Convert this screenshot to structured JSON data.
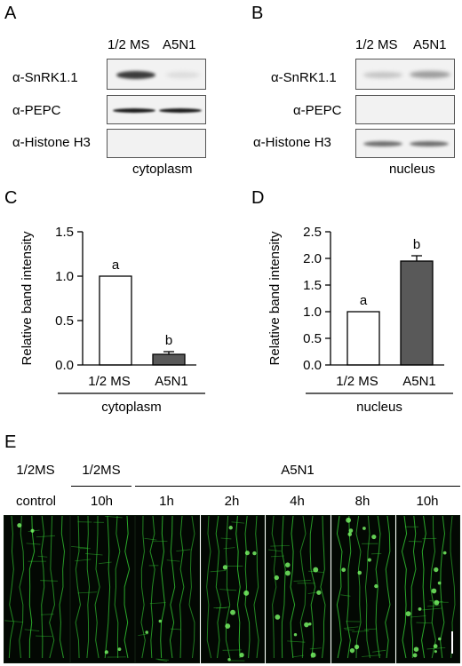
{
  "panels": {
    "A": "A",
    "B": "B",
    "C": "C",
    "D": "D",
    "E": "E"
  },
  "blot_A": {
    "lanes": [
      "1/2 MS",
      "A5N1"
    ],
    "rows": [
      "α-SnRK1.1",
      "α-PEPC",
      "α-Histone H3"
    ],
    "caption": "cytoplasm"
  },
  "blot_B": {
    "lanes": [
      "1/2 MS",
      "A5N1"
    ],
    "rows": [
      "α-SnRK1.1",
      "α-PEPC",
      "α-Histone H3"
    ],
    "caption": "nucleus"
  },
  "chart_data": [
    {
      "type": "bar",
      "panel": "C",
      "categories": [
        "1/2 MS",
        "A5N1"
      ],
      "values": [
        1.0,
        0.12
      ],
      "errors": [
        0,
        0.03
      ],
      "significance": [
        "a",
        "b"
      ],
      "bar_colors": [
        "#ffffff",
        "#595959"
      ],
      "ylabel": "Relative band intensity",
      "ylim": [
        0,
        1.5
      ],
      "yticks": [
        "0.0",
        "0.5",
        "1.0",
        "1.5"
      ],
      "group_label": "cytoplasm",
      "grid": false
    },
    {
      "type": "bar",
      "panel": "D",
      "categories": [
        "1/2 MS",
        "A5N1"
      ],
      "values": [
        1.0,
        1.95
      ],
      "errors": [
        0,
        0.1
      ],
      "significance": [
        "a",
        "b"
      ],
      "bar_colors": [
        "#ffffff",
        "#595959"
      ],
      "ylabel": "Relative band intensity",
      "ylim": [
        0,
        2.5
      ],
      "yticks": [
        "0.0",
        "0.5",
        "1.0",
        "1.5",
        "2.0",
        "2.5"
      ],
      "group_label": "nucleus",
      "grid": false
    }
  ],
  "panel_E": {
    "group_headers": [
      "1/2MS",
      "1/2MS",
      "A5N1"
    ],
    "time_labels": [
      "control",
      "10h",
      "1h",
      "2h",
      "4h",
      "8h",
      "10h"
    ],
    "image_color": "#33cc33"
  }
}
